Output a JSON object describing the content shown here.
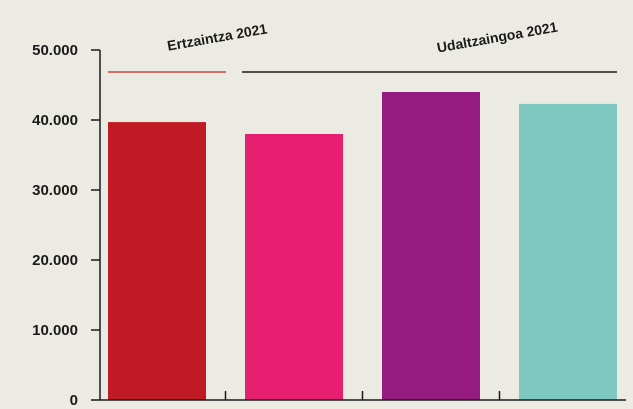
{
  "chart_data": {
    "type": "bar",
    "title": "",
    "xlabel": "",
    "ylabel": "",
    "ylim": [
      0,
      50000
    ],
    "yticks": [
      0,
      10000,
      20000,
      30000,
      40000,
      50000
    ],
    "ytick_labels": [
      "0",
      "10.000",
      "20.000",
      "30.000",
      "40.000",
      "50.000"
    ],
    "grid": false,
    "bars": [
      {
        "value": 39700,
        "color": "#c01b24"
      },
      {
        "value": 38000,
        "color": "#e61f71"
      },
      {
        "value": 44000,
        "color": "#951b80"
      },
      {
        "value": 42300,
        "color": "#7ec8c1"
      }
    ],
    "groups": [
      {
        "label": "Ertzaintza 2021",
        "bars": [
          0
        ],
        "line_color": "#c9453a"
      },
      {
        "label": "Udaltzaingoa 2021",
        "bars": [
          1,
          2,
          3
        ],
        "line_color": "#1a1a1a"
      }
    ]
  }
}
